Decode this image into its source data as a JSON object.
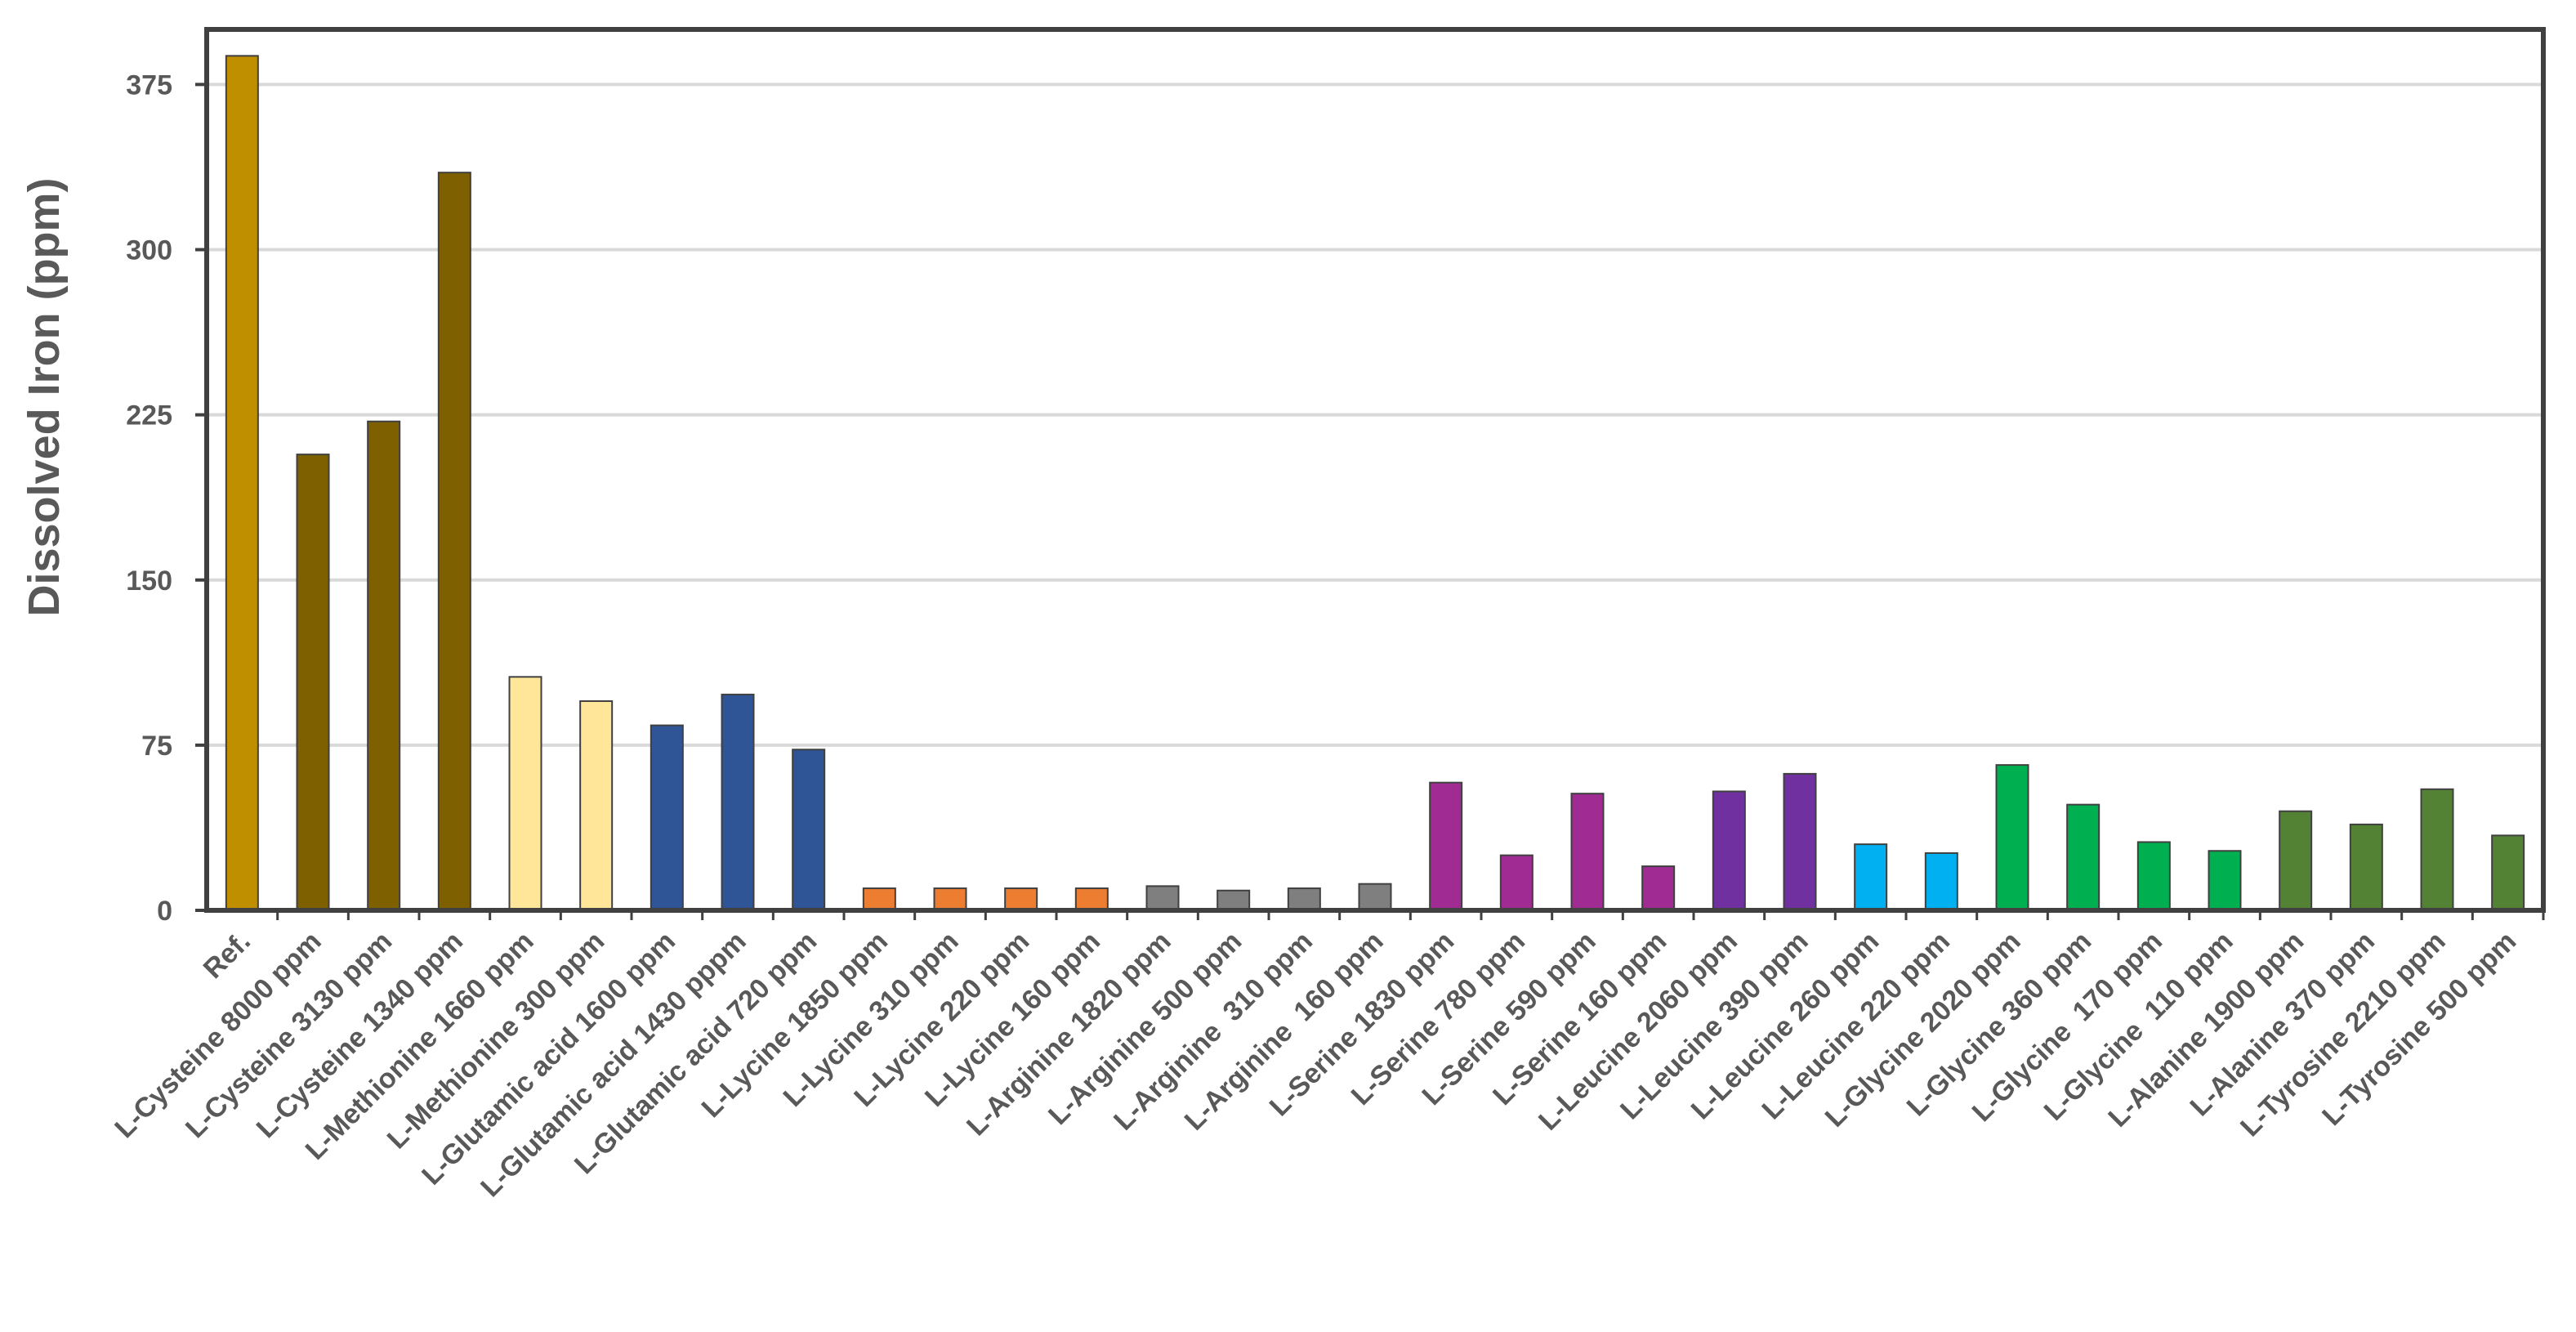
{
  "chart_data": {
    "type": "bar",
    "title": "",
    "xlabel": "",
    "ylabel": "Dissolved Iron (ppm)",
    "ylim": [
      0,
      400
    ],
    "yticks": [
      0,
      75,
      150,
      225,
      300,
      375
    ],
    "grid": true,
    "legend": "none",
    "categories": [
      "Ref.",
      "L-Cysteine 8000 ppm",
      "L-Cysteine 3130 ppm",
      "L-Cysteine 1340 ppm",
      "L-Methionine 1660 ppm",
      "L-Methionine 300 ppm",
      "L-Glutamic acid 1600 ppm",
      "L-Glutamic acid 1430 pppm",
      "L-Glutamic acid 720 ppm",
      "L-Lycine 1850 ppm",
      "L-Lycine 310 ppm",
      "L-Lycine 220 ppm",
      "L-Lycine 160 ppm",
      "L-Arginine 1820 ppm",
      "L-Arginine 500 ppm",
      "L-Arginine  310 ppm",
      "L-Arginine  160 ppm",
      "L-Serine 1830 ppm",
      "L-Serine 780 ppm",
      "L-Serine 590 ppm",
      "L-Serine 160 ppm",
      "L-Leucine 2060 ppm",
      "L-Leucine 390 ppm",
      "L-Leucine 260 ppm",
      "L-Leucine 220 ppm",
      "L-Glycine 2020 ppm",
      "L-Glycine 360 ppm",
      "L-Glycine  170 ppm",
      "L-Glycine  110 ppm",
      "L-Alanine 1900 ppm",
      "L-Alanine 370 ppm",
      "L-Tyrosine 2210 ppm",
      "L-Tyrosine 500 ppm"
    ],
    "values": [
      388,
      207,
      222,
      335,
      106,
      95,
      84,
      98,
      73,
      10,
      10,
      10,
      10,
      11,
      9,
      10,
      12,
      58,
      25,
      53,
      20,
      54,
      62,
      30,
      26,
      66,
      48,
      31,
      27,
      45,
      39,
      55,
      34
    ],
    "colors": [
      "#BF8F00",
      "#7F6000",
      "#7F6000",
      "#7F6000",
      "#FFE699",
      "#FFE699",
      "#2F5597",
      "#2F5597",
      "#2F5597",
      "#ED7D31",
      "#ED7D31",
      "#ED7D31",
      "#ED7D31",
      "#7F7F7F",
      "#7F7F7F",
      "#7F7F7F",
      "#7F7F7F",
      "#A02B93",
      "#A02B93",
      "#A02B93",
      "#A02B93",
      "#7030A0",
      "#7030A0",
      "#00B0F0",
      "#00B0F0",
      "#00B050",
      "#00B050",
      "#00B050",
      "#00B050",
      "#548235",
      "#548235",
      "#548235",
      "#548235"
    ],
    "axis_color": "#404040",
    "grid_color": "#D9D9D9",
    "bar_outline": "#404040"
  }
}
